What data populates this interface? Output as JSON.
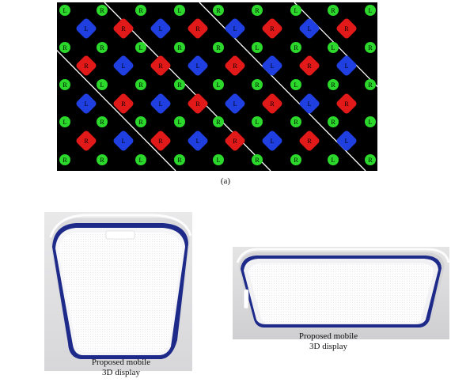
{
  "figure_label": "(a)",
  "pixel_array": {
    "green_letters": [
      "L",
      "R",
      "R",
      "L",
      "R",
      "R",
      "L",
      "R"
    ],
    "red_label": "R",
    "blue_label": "L",
    "colors": {
      "background": "#000000",
      "green": "#2bd82b",
      "red": "#e11919",
      "blue": "#1f3fe0",
      "separator": "#ffffff"
    }
  },
  "device_left_caption": {
    "line1": "Proposed mobile",
    "line2": "3D display"
  },
  "device_right_caption": {
    "line1": "Proposed mobile",
    "line2": "3D display"
  }
}
